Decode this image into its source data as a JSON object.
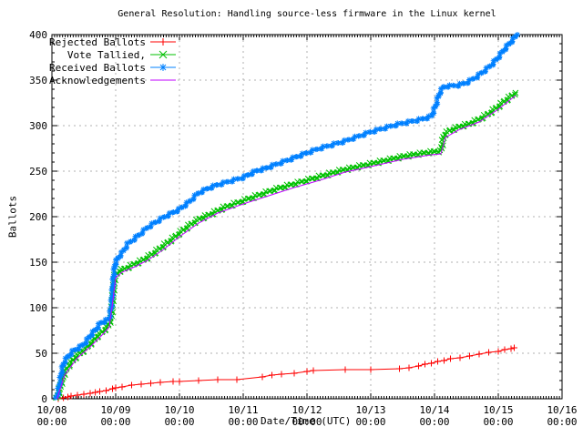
{
  "chart_data": {
    "type": "line",
    "title": "General Resolution: Handling source-less firmware in the Linux kernel",
    "xlabel": "Date/Time (UTC)",
    "ylabel": "Ballots",
    "ylim": [
      0,
      400
    ],
    "y_tick_step": 50,
    "y_ticks": [
      0,
      50,
      100,
      150,
      200,
      250,
      300,
      350,
      400
    ],
    "x_ticks": [
      {
        "top": "10/08",
        "bottom": "00:00"
      },
      {
        "top": "10/09",
        "bottom": "00:00"
      },
      {
        "top": "10/10",
        "bottom": "00:00"
      },
      {
        "top": "10/11",
        "bottom": "00:00"
      },
      {
        "top": "10/12",
        "bottom": "00:00"
      },
      {
        "top": "10/13",
        "bottom": "00:00"
      },
      {
        "top": "10/14",
        "bottom": "00:00"
      },
      {
        "top": "10/15",
        "bottom": "00:00"
      },
      {
        "top": "10/16",
        "bottom": "00:00"
      }
    ],
    "x_unit": "days since 10/08 00:00 UTC",
    "grid": true,
    "legend_position": "top-left",
    "background_color": "#ffffff",
    "grid_color": "#b0b0b0",
    "border_color": "#000000",
    "series": [
      {
        "name": "Rejected Ballots",
        "color": "#ff0000",
        "marker": "plus",
        "dense_markers": false,
        "points": [
          [
            0.1,
            0
          ],
          [
            0.18,
            1
          ],
          [
            0.25,
            2
          ],
          [
            0.3,
            3
          ],
          [
            0.4,
            4
          ],
          [
            0.5,
            5
          ],
          [
            0.6,
            6
          ],
          [
            0.68,
            7
          ],
          [
            0.75,
            8
          ],
          [
            0.85,
            9
          ],
          [
            0.95,
            11
          ],
          [
            1.0,
            12
          ],
          [
            1.1,
            13
          ],
          [
            1.25,
            15
          ],
          [
            1.4,
            16
          ],
          [
            1.55,
            17
          ],
          [
            1.7,
            18
          ],
          [
            1.9,
            19
          ],
          [
            2.0,
            19
          ],
          [
            2.3,
            20
          ],
          [
            2.6,
            21
          ],
          [
            2.9,
            21
          ],
          [
            3.3,
            24
          ],
          [
            3.45,
            26
          ],
          [
            3.6,
            27
          ],
          [
            3.8,
            28
          ],
          [
            4.0,
            30
          ],
          [
            4.1,
            31
          ],
          [
            4.6,
            32
          ],
          [
            5.0,
            32
          ],
          [
            5.45,
            33
          ],
          [
            5.6,
            34
          ],
          [
            5.75,
            36
          ],
          [
            5.85,
            38
          ],
          [
            5.95,
            39
          ],
          [
            6.05,
            41
          ],
          [
            6.15,
            42
          ],
          [
            6.25,
            44
          ],
          [
            6.4,
            45
          ],
          [
            6.55,
            47
          ],
          [
            6.7,
            49
          ],
          [
            6.85,
            51
          ],
          [
            7.0,
            52
          ],
          [
            7.1,
            54
          ],
          [
            7.2,
            55
          ],
          [
            7.25,
            56
          ]
        ]
      },
      {
        "name": "Vote Tallied,",
        "color": "#00c000",
        "marker": "cross",
        "dense_markers": true,
        "points": [
          [
            0.08,
            0
          ],
          [
            0.11,
            6
          ],
          [
            0.14,
            15
          ],
          [
            0.18,
            25
          ],
          [
            0.22,
            32
          ],
          [
            0.3,
            40
          ],
          [
            0.4,
            48
          ],
          [
            0.5,
            53
          ],
          [
            0.6,
            60
          ],
          [
            0.7,
            68
          ],
          [
            0.8,
            74
          ],
          [
            0.88,
            80
          ],
          [
            0.93,
            88
          ],
          [
            0.96,
            115
          ],
          [
            0.99,
            135
          ],
          [
            1.05,
            140
          ],
          [
            1.15,
            143
          ],
          [
            1.3,
            148
          ],
          [
            1.45,
            153
          ],
          [
            1.6,
            160
          ],
          [
            1.75,
            168
          ],
          [
            1.9,
            176
          ],
          [
            2.0,
            182
          ],
          [
            2.15,
            190
          ],
          [
            2.3,
            197
          ],
          [
            2.5,
            203
          ],
          [
            2.7,
            210
          ],
          [
            2.9,
            215
          ],
          [
            3.1,
            220
          ],
          [
            3.3,
            225
          ],
          [
            3.5,
            230
          ],
          [
            3.7,
            234
          ],
          [
            3.9,
            238
          ],
          [
            4.1,
            242
          ],
          [
            4.3,
            246
          ],
          [
            4.55,
            251
          ],
          [
            4.8,
            255
          ],
          [
            5.0,
            258
          ],
          [
            5.25,
            262
          ],
          [
            5.5,
            266
          ],
          [
            5.75,
            269
          ],
          [
            5.95,
            271
          ],
          [
            6.1,
            272
          ],
          [
            6.15,
            290
          ],
          [
            6.25,
            295
          ],
          [
            6.4,
            299
          ],
          [
            6.55,
            302
          ],
          [
            6.7,
            307
          ],
          [
            6.85,
            313
          ],
          [
            7.0,
            321
          ],
          [
            7.1,
            327
          ],
          [
            7.2,
            332
          ],
          [
            7.27,
            336
          ]
        ]
      },
      {
        "name": "Received Ballots",
        "color": "#0080ff",
        "marker": "star",
        "dense_markers": true,
        "points": [
          [
            0.07,
            0
          ],
          [
            0.1,
            8
          ],
          [
            0.13,
            20
          ],
          [
            0.16,
            32
          ],
          [
            0.19,
            40
          ],
          [
            0.26,
            47
          ],
          [
            0.33,
            52
          ],
          [
            0.4,
            55
          ],
          [
            0.47,
            58
          ],
          [
            0.54,
            63
          ],
          [
            0.61,
            70
          ],
          [
            0.69,
            76
          ],
          [
            0.76,
            83
          ],
          [
            0.83,
            85
          ],
          [
            0.9,
            88
          ],
          [
            0.93,
            100
          ],
          [
            0.96,
            128
          ],
          [
            0.99,
            148
          ],
          [
            1.04,
            155
          ],
          [
            1.1,
            160
          ],
          [
            1.19,
            170
          ],
          [
            1.3,
            176
          ],
          [
            1.37,
            180
          ],
          [
            1.5,
            188
          ],
          [
            1.63,
            194
          ],
          [
            1.8,
            201
          ],
          [
            2.0,
            208
          ],
          [
            2.15,
            216
          ],
          [
            2.3,
            226
          ],
          [
            2.45,
            231
          ],
          [
            2.6,
            235
          ],
          [
            2.8,
            239
          ],
          [
            3.0,
            243
          ],
          [
            3.2,
            250
          ],
          [
            3.35,
            253
          ],
          [
            3.5,
            257
          ],
          [
            3.7,
            262
          ],
          [
            3.85,
            266
          ],
          [
            4.0,
            270
          ],
          [
            4.2,
            275
          ],
          [
            4.4,
            279
          ],
          [
            4.6,
            283
          ],
          [
            4.8,
            288
          ],
          [
            5.0,
            293
          ],
          [
            5.2,
            297
          ],
          [
            5.4,
            301
          ],
          [
            5.6,
            304
          ],
          [
            5.8,
            307
          ],
          [
            5.95,
            310
          ],
          [
            6.02,
            322
          ],
          [
            6.08,
            336
          ],
          [
            6.15,
            343
          ],
          [
            6.35,
            344
          ],
          [
            6.5,
            347
          ],
          [
            6.65,
            353
          ],
          [
            6.8,
            361
          ],
          [
            6.9,
            367
          ],
          [
            7.0,
            375
          ],
          [
            7.1,
            384
          ],
          [
            7.2,
            392
          ],
          [
            7.3,
            400
          ]
        ]
      },
      {
        "name": "Acknowledgements",
        "color": "#c000ff",
        "marker": "none",
        "dense_markers": false,
        "points": [
          [
            0.08,
            0
          ],
          [
            0.2,
            26
          ],
          [
            0.4,
            45
          ],
          [
            0.6,
            57
          ],
          [
            0.8,
            71
          ],
          [
            0.9,
            79
          ],
          [
            0.96,
            110
          ],
          [
            1.0,
            133
          ],
          [
            1.1,
            139
          ],
          [
            1.3,
            145
          ],
          [
            1.5,
            152
          ],
          [
            1.75,
            164
          ],
          [
            2.0,
            178
          ],
          [
            2.3,
            193
          ],
          [
            2.6,
            204
          ],
          [
            3.0,
            214
          ],
          [
            3.4,
            223
          ],
          [
            3.8,
            232
          ],
          [
            4.2,
            240
          ],
          [
            4.6,
            249
          ],
          [
            5.0,
            255
          ],
          [
            5.5,
            263
          ],
          [
            5.95,
            268
          ],
          [
            6.1,
            269
          ],
          [
            6.17,
            287
          ],
          [
            6.4,
            296
          ],
          [
            6.7,
            304
          ],
          [
            7.0,
            318
          ],
          [
            7.27,
            333
          ]
        ]
      }
    ]
  }
}
